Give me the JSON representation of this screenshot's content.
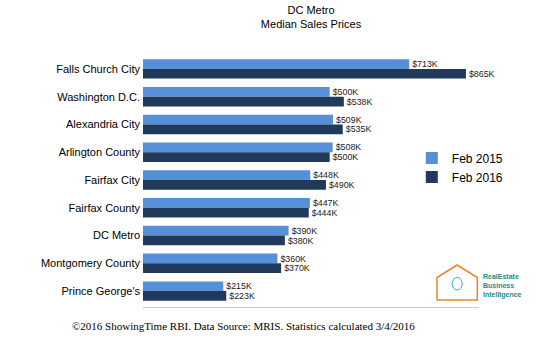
{
  "chart_data": {
    "type": "bar",
    "orientation": "horizontal",
    "title": "DC Metro\nMedian Sales Prices",
    "categories": [
      "Falls Church City",
      "Washington D.C.",
      "Alexandria City",
      "Arlington County",
      "Fairfax City",
      "Fairfax County",
      "DC Metro",
      "Montgomery County",
      "Prince George's"
    ],
    "series": [
      {
        "name": "Feb 2015",
        "color": "#5590d9",
        "values": [
          713,
          500,
          509,
          508,
          448,
          447,
          390,
          360,
          215
        ],
        "value_labels": [
          "$713K",
          "$500K",
          "$509K",
          "$508K",
          "$448K",
          "$447K",
          "$390K",
          "$360K",
          "$215K"
        ]
      },
      {
        "name": "Feb 2016",
        "color": "#213a5c",
        "values": [
          865,
          538,
          535,
          500,
          490,
          444,
          380,
          370,
          223
        ],
        "value_labels": [
          "$865K",
          "$538K",
          "$535K",
          "$500K",
          "$490K",
          "$444K",
          "$380K",
          "$370K",
          "$223K"
        ]
      }
    ],
    "xlim": [
      0,
      900
    ],
    "data_labels": true,
    "tick_labels": "y",
    "grid": false,
    "legend": "right",
    "annotations": [
      "©2016 ShowingTime RBI. Data Source: MRIS. Statistics calculated 3/4/2016",
      "RealEstate\nBusiness\nIntelligence"
    ]
  }
}
